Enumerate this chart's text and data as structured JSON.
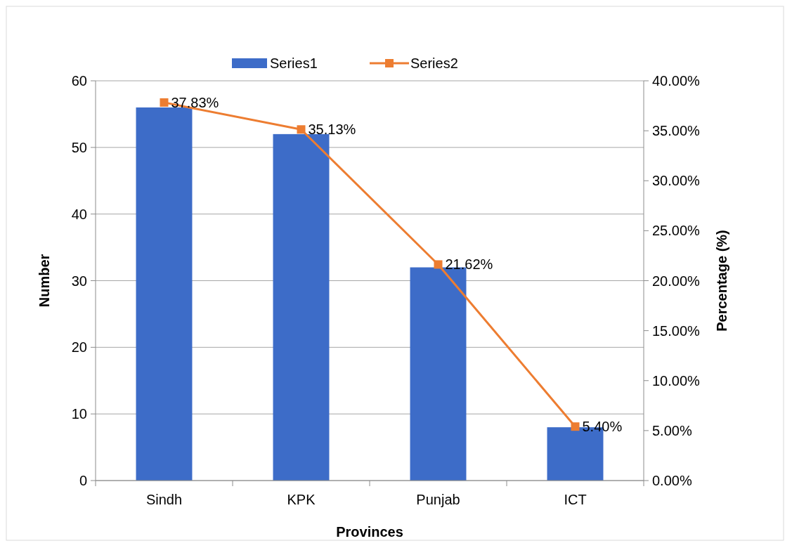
{
  "chart_data": {
    "type": "bar",
    "xlabel": "Provinces",
    "ylabel": "Number",
    "y2label": "Percentage (%)",
    "categories": [
      "Sindh",
      "KPK",
      "Punjab",
      "ICT"
    ],
    "series": [
      {
        "name": "Series1",
        "color": "#3d6cc8",
        "values": [
          56,
          52,
          32,
          8
        ]
      },
      {
        "name": "Series2",
        "type": "line",
        "axis": "y2",
        "color": "#ed7d31",
        "values": [
          37.83,
          35.13,
          21.62,
          5.4
        ],
        "value_labels": [
          "37.83%",
          "35.13%",
          "21.62%",
          "5.40%"
        ],
        "marker": "square"
      }
    ],
    "ylim": [
      0,
      60
    ],
    "yticks": [
      0,
      10,
      20,
      30,
      40,
      50,
      60
    ],
    "y2lim": [
      0,
      40
    ],
    "y2ticks": [
      {
        "value": 0,
        "label": "0.00%"
      },
      {
        "value": 5,
        "label": "5.00%"
      },
      {
        "value": 10,
        "label": "10.00%"
      },
      {
        "value": 15,
        "label": "15.00%"
      },
      {
        "value": 20,
        "label": "20.00%"
      },
      {
        "value": 25,
        "label": "25.00%"
      },
      {
        "value": 30,
        "label": "30.00%"
      },
      {
        "value": 35,
        "label": "35.00%"
      },
      {
        "value": 40,
        "label": "40.00%"
      }
    ],
    "grid": "y",
    "legend": "top"
  }
}
